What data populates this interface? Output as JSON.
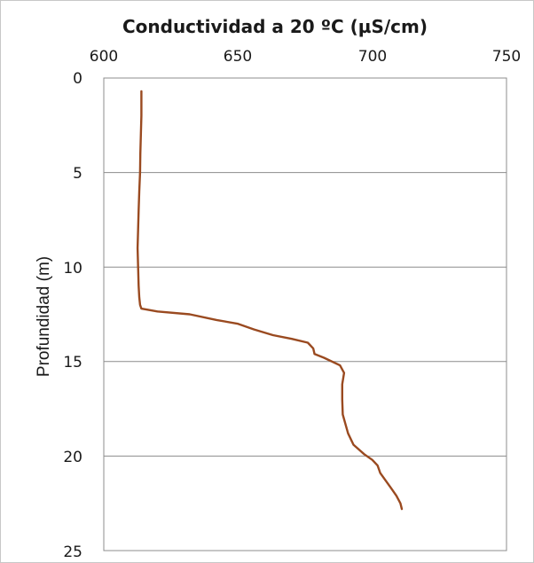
{
  "chart_data": {
    "type": "line",
    "title": "Conductividad  a  20 ºC (µS/cm)",
    "xlabel": "",
    "ylabel": "Profundidad (m)",
    "xlim": [
      600,
      750
    ],
    "ylim": [
      0,
      25
    ],
    "y_inverted": true,
    "x_axis_position": "top",
    "x_ticks": [
      "600",
      "650",
      "700",
      "750"
    ],
    "y_ticks": [
      "0",
      "5",
      "10",
      "15",
      "20",
      "25"
    ],
    "grid": "horizontal",
    "series_color": "#9a4a20",
    "series": [
      {
        "x": [
          614,
          614,
          613.8,
          613.6,
          613.5,
          613.2,
          613,
          612.8,
          612.6,
          612.8,
          613,
          613.2,
          613.5,
          614,
          620,
          632,
          642,
          650,
          656,
          663,
          670,
          676,
          678,
          678.5,
          682,
          688,
          689.5,
          688.8,
          688.8,
          689,
          690,
          691,
          693,
          697,
          700,
          702,
          703,
          705,
          707,
          709,
          710.5,
          711
        ],
        "y": [
          0.7,
          2,
          3,
          4,
          5,
          6,
          7,
          8,
          9,
          10,
          11,
          11.6,
          12,
          12.2,
          12.35,
          12.5,
          12.8,
          13,
          13.3,
          13.6,
          13.8,
          14,
          14.3,
          14.6,
          14.8,
          15.2,
          15.6,
          16.2,
          17,
          17.8,
          18.3,
          18.8,
          19.4,
          19.9,
          20.2,
          20.5,
          20.9,
          21.3,
          21.7,
          22.1,
          22.5,
          22.8
        ]
      }
    ]
  }
}
